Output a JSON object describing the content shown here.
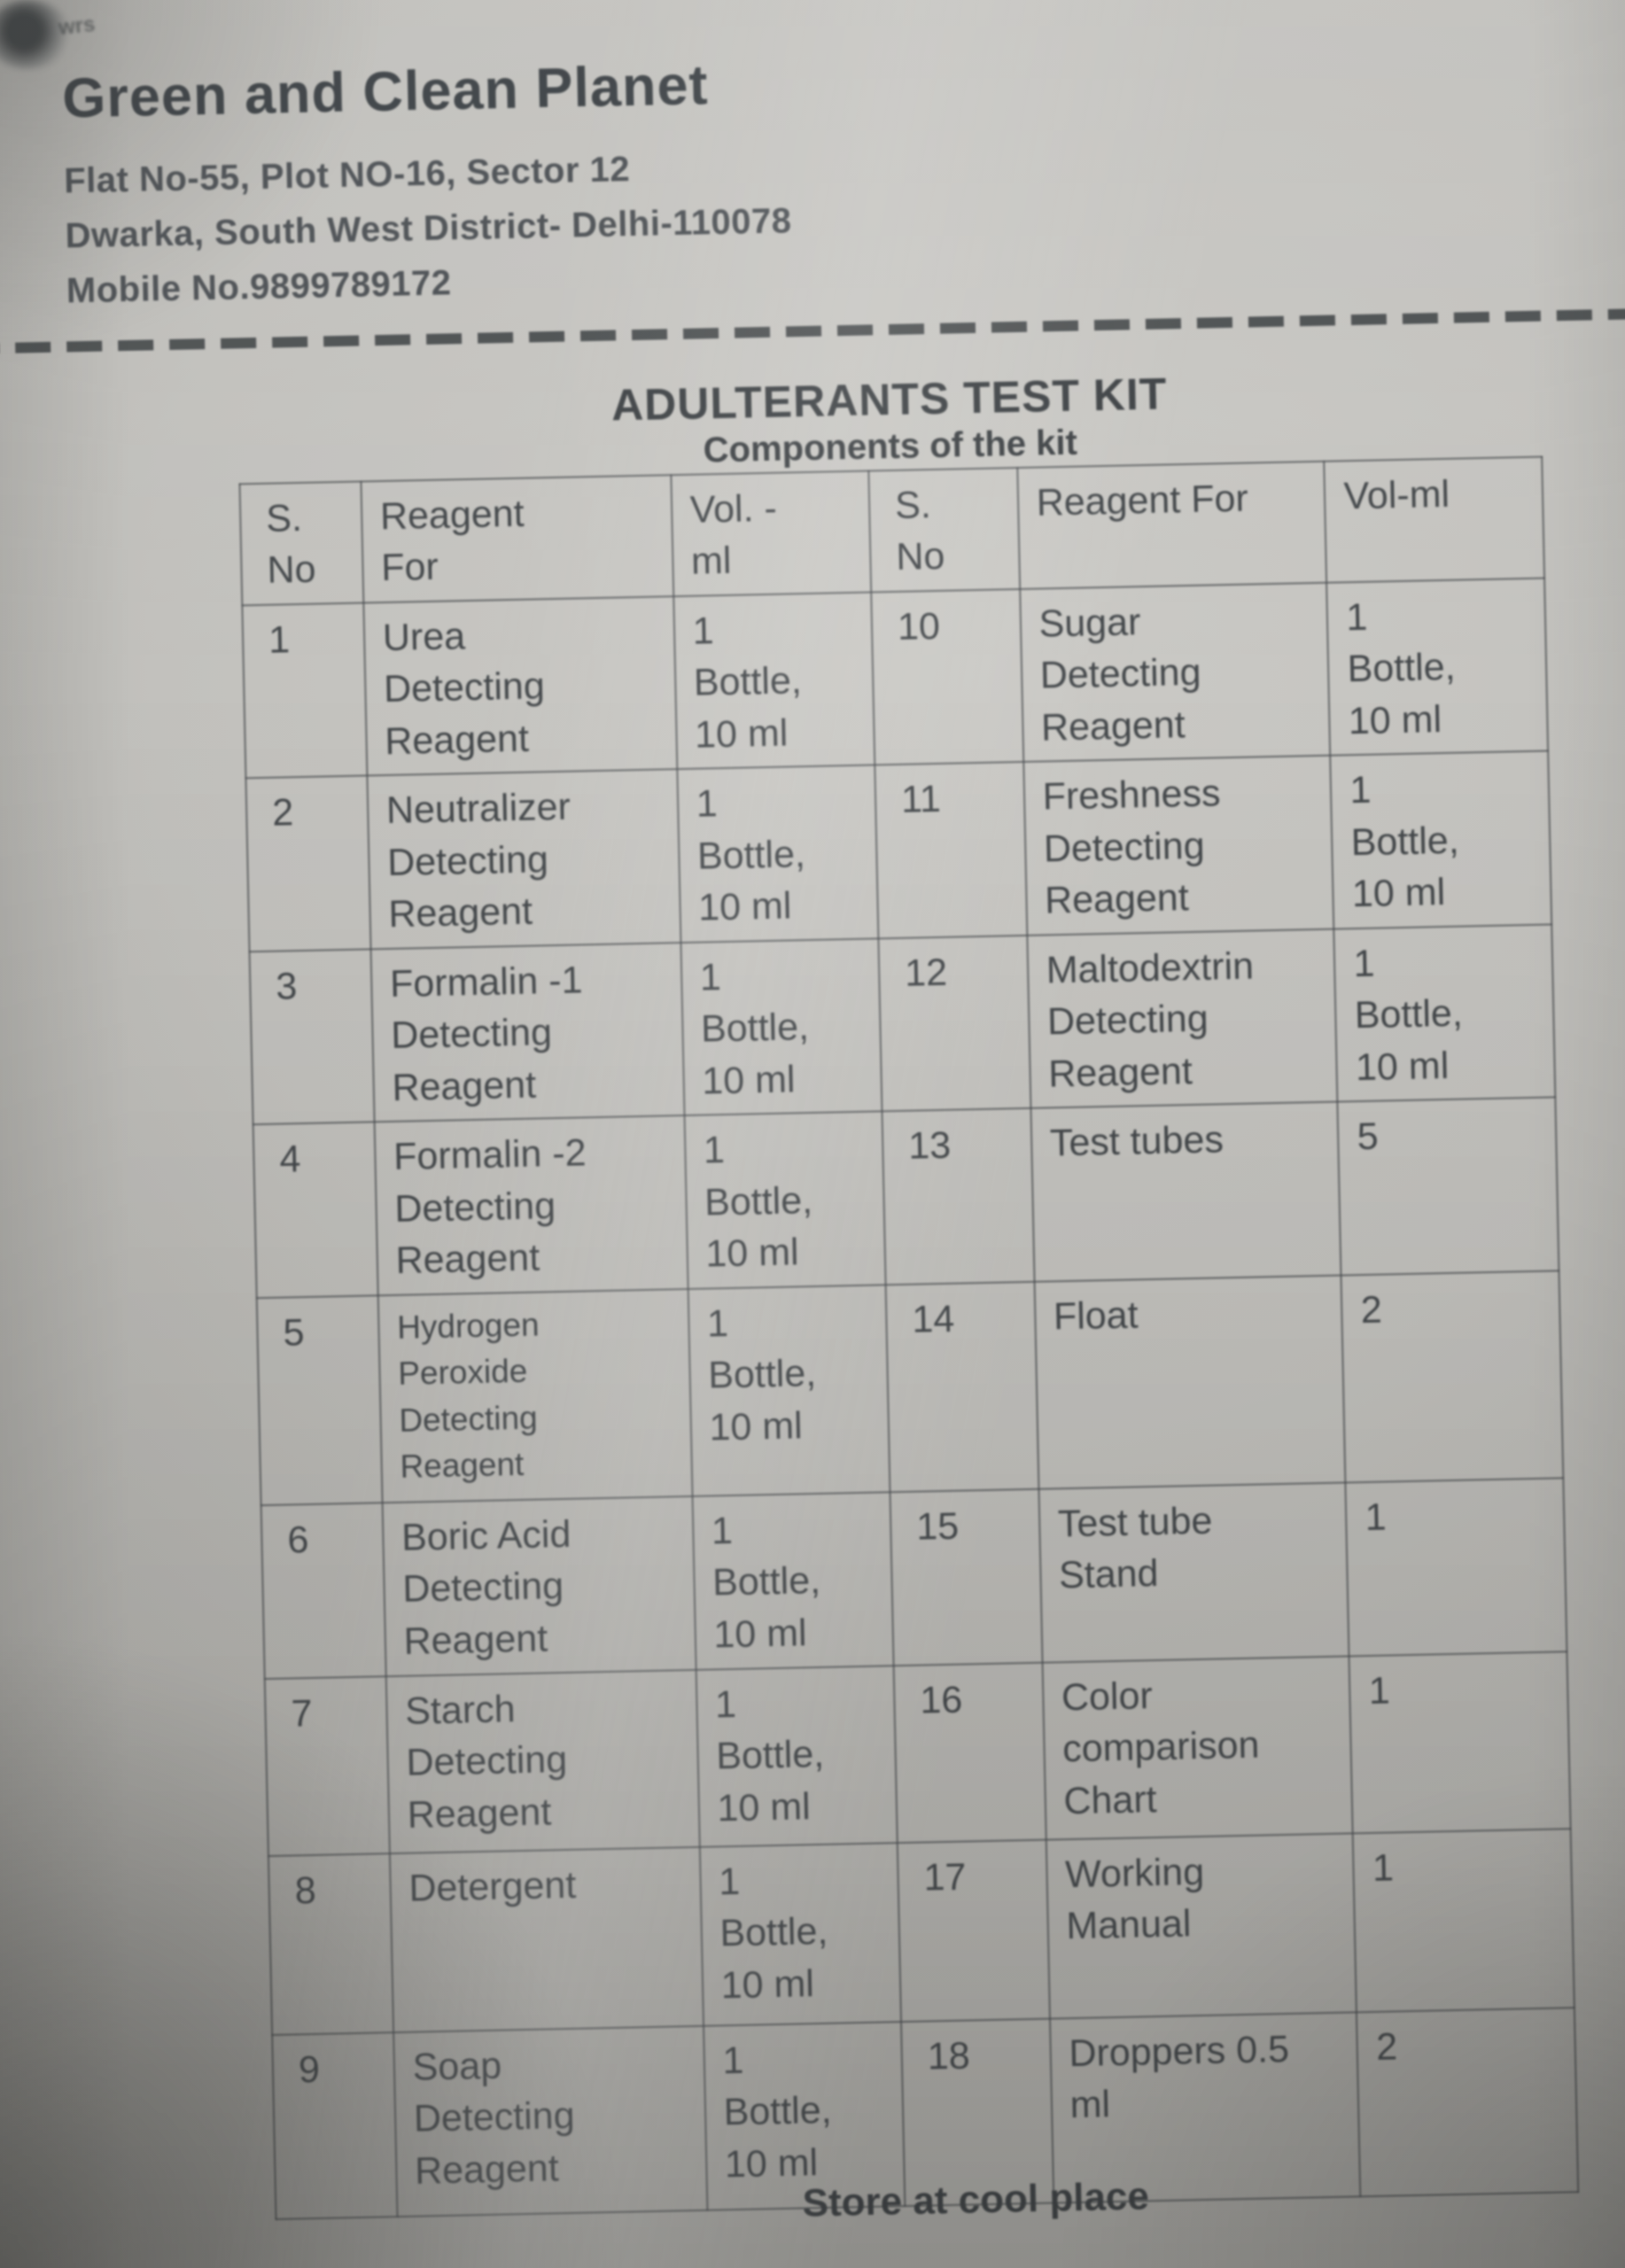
{
  "artifact": {
    "corner_mark": "wrs"
  },
  "colors": {
    "paper": "#bdbcb8",
    "ink": "#3f4346",
    "table_line": "#4c5052"
  },
  "header": {
    "company": "Green and Clean Planet",
    "address_line1": "Flat No-55, Plot NO-16, Sector 12",
    "address_line2": "Dwarka, South West District- Delhi-110078",
    "mobile": "Mobile No.9899789172"
  },
  "kit": {
    "title": "ADULTERANTS TEST KIT",
    "subtitle": "Components of the kit",
    "footer_note": "Store at cool place"
  },
  "table": {
    "headers": [
      "S.\nNo",
      "Reagent\nFor",
      "Vol. -\nml",
      "S.\nNo",
      "Reagent For",
      "Vol-ml"
    ],
    "rows": [
      {
        "sno": "1",
        "reagent": "Urea\nDetecting\nReagent",
        "vol": "1\nBottle,\n10 ml",
        "sno2": "10",
        "reagent2": "Sugar\nDetecting\nReagent",
        "vol2": "1\nBottle,\n10 ml"
      },
      {
        "sno": "2",
        "reagent": "Neutralizer\nDetecting\nReagent",
        "vol": "1\nBottle,\n10 ml",
        "sno2": "11",
        "reagent2": "Freshness\nDetecting\nReagent",
        "vol2": "1\nBottle,\n10 ml"
      },
      {
        "sno": "3",
        "reagent": "Formalin -1\nDetecting\nReagent",
        "vol": "1\nBottle,\n10 ml",
        "sno2": "12",
        "reagent2": "Maltodextrin\nDetecting\nReagent",
        "vol2": "1\nBottle,\n10 ml"
      },
      {
        "sno": "4",
        "reagent": "Formalin -2\nDetecting\nReagent",
        "vol": "1\nBottle,\n10 ml",
        "sno2": "13",
        "reagent2": "Test tubes",
        "vol2": "5"
      },
      {
        "sno": "5",
        "reagent": "Hydrogen\nPeroxide\nDetecting\nReagent",
        "vol": "1\nBottle,\n10 ml",
        "sno2": "14",
        "reagent2": "Float",
        "vol2": "2"
      },
      {
        "sno": "6",
        "reagent": "Boric Acid\nDetecting\nReagent",
        "vol": "1\nBottle,\n10 ml",
        "sno2": "15",
        "reagent2": "Test tube\nStand",
        "vol2": "1"
      },
      {
        "sno": "7",
        "reagent": "Starch\nDetecting\nReagent",
        "vol": "1\nBottle,\n10 ml",
        "sno2": "16",
        "reagent2": "Color\ncomparison\nChart",
        "vol2": "1"
      },
      {
        "sno": "8",
        "reagent": "Detergent",
        "vol": "1\nBottle,\n10 ml",
        "sno2": "17",
        "reagent2": "Working\nManual",
        "vol2": "1"
      },
      {
        "sno": "9",
        "reagent": "Soap\nDetecting\nReagent",
        "vol": "1\nBottle,\n10 ml",
        "sno2": "18",
        "reagent2": "Droppers 0.5\nml",
        "vol2": "2"
      }
    ]
  }
}
